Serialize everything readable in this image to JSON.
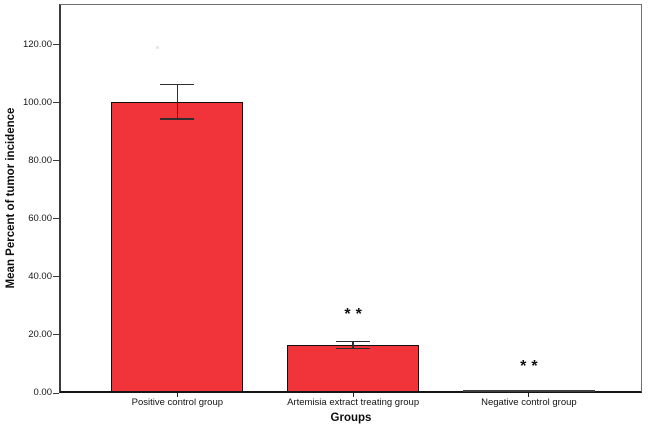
{
  "figure": {
    "y_axis_title": "Mean Percent of tumor incidence",
    "x_axis_title": "Groups"
  },
  "chart_data": {
    "type": "bar",
    "title": "",
    "xlabel": "Groups",
    "ylabel": "Mean Percent of tumor incidence",
    "categories": [
      "Positive control group",
      "Artemisia extract treating group",
      "Negative control group"
    ],
    "values": [
      100.3,
      16.6,
      0
    ],
    "errors": [
      5.9,
      1.2,
      0
    ],
    "significance": [
      "",
      "**",
      "**"
    ],
    "yticks": [
      0,
      20,
      40,
      60,
      80,
      100,
      120
    ],
    "ytick_labels": [
      "0.00",
      "20.00",
      "40.00",
      "60.00",
      "80.00",
      "100.00",
      "120.00"
    ],
    "ylim": [
      0,
      134
    ],
    "grid": false,
    "legend": false,
    "bar_color": "#F1343A",
    "bar_border_color": "#101010",
    "axis_color": "#151515",
    "error_bar_color": "#2f2f2f"
  }
}
